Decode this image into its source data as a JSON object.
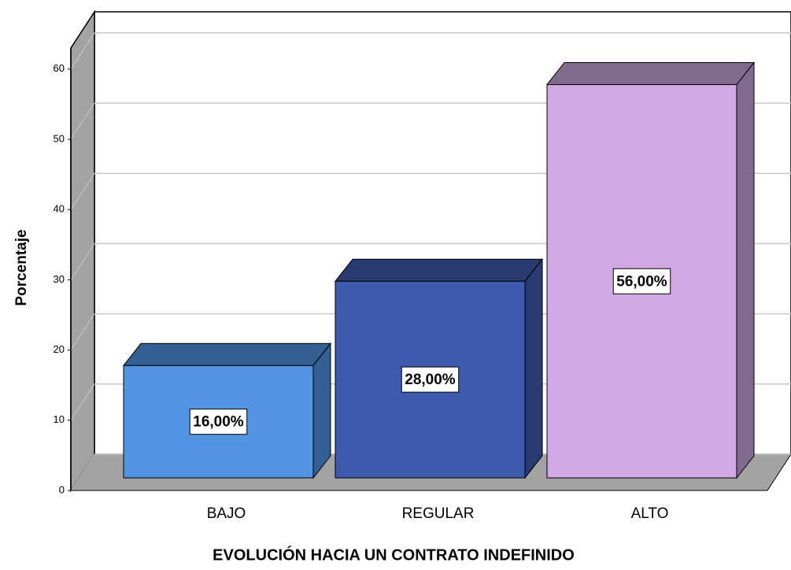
{
  "chart_data": {
    "type": "bar3d",
    "categories": [
      "BAJO",
      "REGULAR",
      "ALTO"
    ],
    "values": [
      16,
      28,
      56
    ],
    "value_labels": [
      "16,00%",
      "28,00%",
      "56,00%"
    ],
    "colors": [
      "#5294e2",
      "#3d5aac",
      "#cfa8e4"
    ],
    "side_colors": [
      "#345f95",
      "#283b70",
      "#806b8f"
    ],
    "ylabel": "Porcentaje",
    "xlabel": "EVOLUCIÓN HACIA UN CONTRATO INDEFINIDO",
    "ylim": [
      0,
      63
    ],
    "yticks": [
      0,
      10,
      20,
      30,
      40,
      50,
      60
    ],
    "grid": true
  }
}
